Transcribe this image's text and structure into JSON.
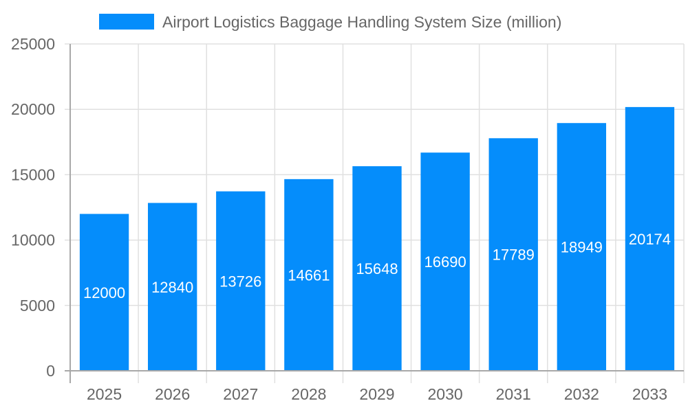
{
  "chart_data": {
    "type": "bar",
    "title": "",
    "xlabel": "",
    "ylabel": "",
    "categories": [
      "2025",
      "2026",
      "2027",
      "2028",
      "2029",
      "2030",
      "2031",
      "2032",
      "2033"
    ],
    "series": [
      {
        "name": "Airport Logistics Baggage Handling System Size (million)",
        "color": "#058dfb",
        "values": [
          12000,
          12840,
          13726,
          14661,
          15648,
          16690,
          17789,
          18949,
          20174
        ]
      }
    ],
    "ylim": [
      0,
      25000
    ],
    "yticks": [
      0,
      5000,
      10000,
      15000,
      20000,
      25000
    ],
    "grid": true,
    "legend_position": "top",
    "data_labels": "center-inside"
  },
  "legend": {
    "label": "Airport Logistics Baggage Handling System Size (million)",
    "color": "#058dfb"
  },
  "colors": {
    "bar": "#058dfb",
    "grid": "#e0e0e0",
    "axis": "#a8a8a8",
    "text": "#666666"
  }
}
